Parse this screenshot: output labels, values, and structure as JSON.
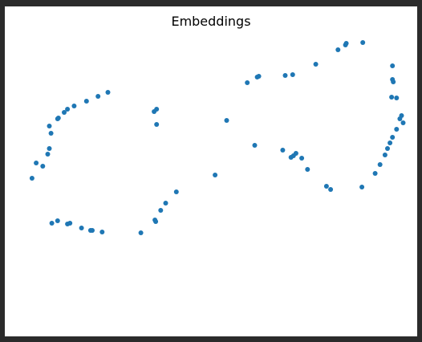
{
  "chart_data": {
    "type": "scatter",
    "title": "Embeddings",
    "xlabel": "",
    "ylabel": "",
    "axes_visible": false,
    "grid": false,
    "xlim": [
      0,
      500
    ],
    "ylim": [
      0,
      300
    ],
    "color": "#1f77b4",
    "series": [
      {
        "points": [
          [
            33,
            138
          ],
          [
            38,
            157
          ],
          [
            46,
            153
          ],
          [
            52,
            168
          ],
          [
            54,
            175
          ],
          [
            56,
            194
          ],
          [
            54,
            203
          ],
          [
            64,
            212
          ],
          [
            65,
            213
          ],
          [
            72,
            220
          ],
          [
            76,
            224
          ],
          [
            84,
            228
          ],
          [
            99,
            234
          ],
          [
            113,
            240
          ],
          [
            125,
            245
          ],
          [
            57,
            82
          ],
          [
            64,
            85
          ],
          [
            76,
            81
          ],
          [
            79,
            82
          ],
          [
            93,
            76
          ],
          [
            104,
            73
          ],
          [
            106,
            73
          ],
          [
            118,
            71
          ],
          [
            165,
            70
          ],
          [
            182,
            86
          ],
          [
            183,
            84
          ],
          [
            189,
            98
          ],
          [
            195,
            107
          ],
          [
            208,
            121
          ],
          [
            181,
            221
          ],
          [
            184,
            224
          ],
          [
            184,
            205
          ],
          [
            255,
            142
          ],
          [
            269,
            210
          ],
          [
            294,
            257
          ],
          [
            306,
            264
          ],
          [
            308,
            265
          ],
          [
            303,
            179
          ],
          [
            340,
            266
          ],
          [
            349,
            267
          ],
          [
            337,
            173
          ],
          [
            347,
            164
          ],
          [
            350,
            166
          ],
          [
            353,
            169
          ],
          [
            360,
            163
          ],
          [
            367,
            149
          ],
          [
            390,
            128
          ],
          [
            395,
            124
          ],
          [
            377,
            280
          ],
          [
            404,
            298
          ],
          [
            413,
            304
          ],
          [
            414,
            306
          ],
          [
            434,
            307
          ],
          [
            433,
            127
          ],
          [
            449,
            144
          ],
          [
            455,
            155
          ],
          [
            461,
            167
          ],
          [
            464,
            175
          ],
          [
            467,
            182
          ],
          [
            470,
            189
          ],
          [
            475,
            199
          ],
          [
            479,
            212
          ],
          [
            481,
            216
          ],
          [
            483,
            207
          ],
          [
            469,
            239
          ],
          [
            470,
            261
          ],
          [
            471,
            258
          ],
          [
            470,
            278
          ],
          [
            475,
            238
          ]
        ]
      }
    ]
  }
}
